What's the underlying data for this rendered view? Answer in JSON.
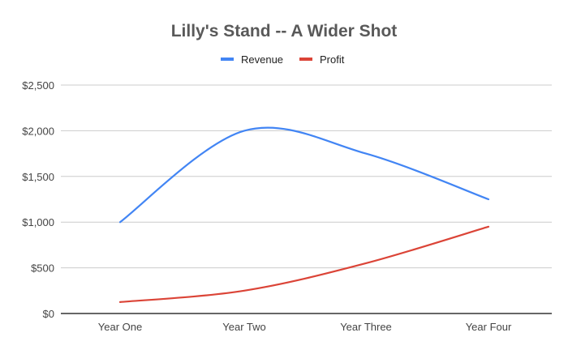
{
  "chart_data": {
    "type": "line",
    "title": "Lilly's Stand -- A Wider Shot",
    "xlabel": "",
    "ylabel": "",
    "categories": [
      "Year One",
      "Year Two",
      "Year Three",
      "Year Four"
    ],
    "ylim": [
      0,
      2500
    ],
    "yticks": [
      0,
      500,
      1000,
      1500,
      2000,
      2500
    ],
    "ytick_labels": [
      "$0",
      "$500",
      "$1,000",
      "$1,500",
      "$2,000",
      "$2,500"
    ],
    "grid": true,
    "smooth": true,
    "legend_position": "top-center",
    "series": [
      {
        "name": "Revenue",
        "color": "#4285f4",
        "values": [
          1000,
          2000,
          1750,
          1250
        ]
      },
      {
        "name": "Profit",
        "color": "#db4437",
        "values": [
          125,
          250,
          550,
          950
        ]
      }
    ]
  }
}
